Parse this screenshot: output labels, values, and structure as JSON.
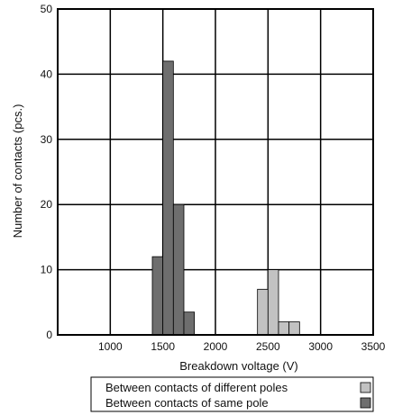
{
  "chart_data": {
    "type": "bar",
    "xlabel": "Breakdown voltage (V)",
    "ylabel": "Number of contacts (pcs.)",
    "xlim": [
      500,
      3500
    ],
    "ylim": [
      0,
      50
    ],
    "x_ticks": [
      1000,
      1500,
      2000,
      2500,
      3000,
      3500
    ],
    "y_ticks": [
      0,
      10,
      20,
      30,
      40,
      50
    ],
    "bin_width": 100,
    "grid": true,
    "legend_position": "bottom-right, below plot",
    "series": [
      {
        "name": "Between contacts of different poles",
        "color": "#c2c2c2",
        "bins": [
          {
            "x": 2450,
            "value": 7
          },
          {
            "x": 2550,
            "value": 10
          },
          {
            "x": 2650,
            "value": 2
          },
          {
            "x": 2750,
            "value": 2
          }
        ]
      },
      {
        "name": "Between contacts of same pole",
        "color": "#6e6e6e",
        "bins": [
          {
            "x": 1450,
            "value": 12
          },
          {
            "x": 1550,
            "value": 42
          },
          {
            "x": 1650,
            "value": 20
          },
          {
            "x": 1750,
            "value": 3.5
          }
        ]
      }
    ]
  }
}
